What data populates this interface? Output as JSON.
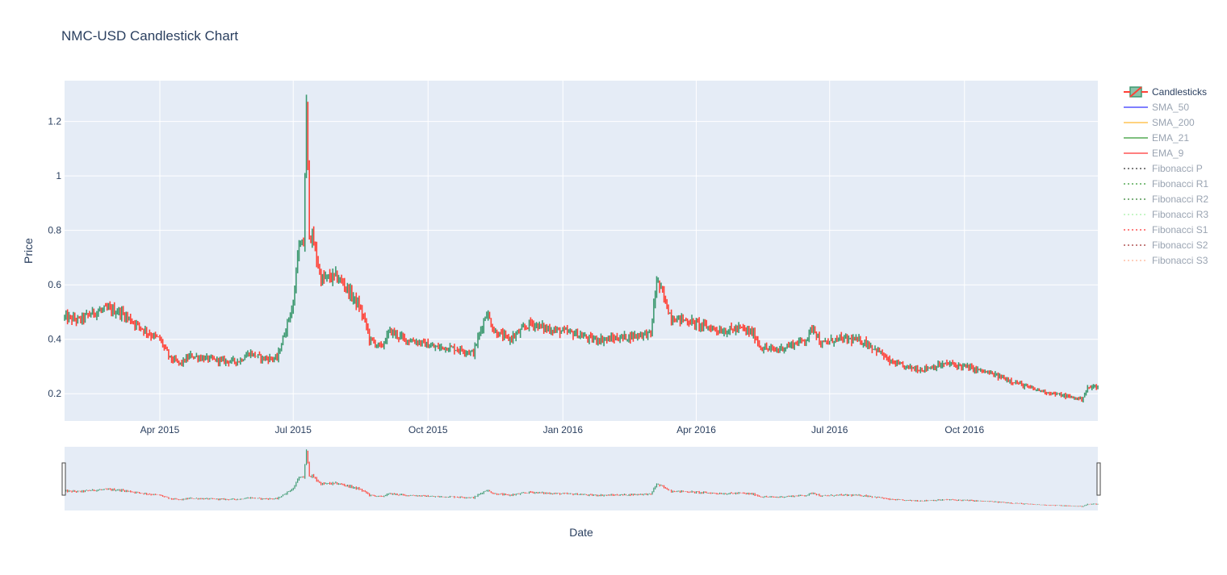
{
  "chart_data": {
    "type": "candlestick",
    "title": "NMC-USD Candlestick Chart",
    "xlabel": "Date",
    "ylabel": "Price",
    "x_range": [
      "2015-01-26",
      "2016-12-31"
    ],
    "ylim": [
      0.1,
      1.35
    ],
    "y_ticks": [
      0.2,
      0.4,
      0.6,
      0.8,
      1,
      1.2
    ],
    "y_tick_labels": [
      "0.2",
      "0.4",
      "0.6",
      "0.8",
      "1",
      "1.2"
    ],
    "x_ticks": [
      "2015-04-01",
      "2015-07-01",
      "2015-10-01",
      "2016-01-01",
      "2016-04-01",
      "2016-07-01",
      "2016-10-01"
    ],
    "x_tick_labels": [
      "Apr 2015",
      "Jul 2015",
      "Oct 2015",
      "Jan 2016",
      "Apr 2016",
      "Jul 2016",
      "Oct 2016"
    ],
    "increasing_color": "#3d9970",
    "decreasing_color": "#ff4136",
    "grid": true,
    "legend_position": "right",
    "rangeslider": true,
    "series": [
      {
        "name": "Candlesticks",
        "kind": "candlestick",
        "visible": true
      },
      {
        "name": "SMA_50",
        "kind": "line",
        "color": "#0000ff",
        "dash": "solid",
        "visible": false
      },
      {
        "name": "SMA_200",
        "kind": "line",
        "color": "#ffa500",
        "dash": "solid",
        "visible": false
      },
      {
        "name": "EMA_21",
        "kind": "line",
        "color": "#008000",
        "dash": "solid",
        "visible": false
      },
      {
        "name": "EMA_9",
        "kind": "line",
        "color": "#ff0000",
        "dash": "solid",
        "visible": false
      },
      {
        "name": "Fibonacci P",
        "kind": "line",
        "color": "#000000",
        "dash": "dot",
        "visible": false
      },
      {
        "name": "Fibonacci R1",
        "kind": "line",
        "color": "#008000",
        "dash": "dot",
        "visible": false
      },
      {
        "name": "Fibonacci R2",
        "kind": "line",
        "color": "#006400",
        "dash": "dot",
        "visible": false
      },
      {
        "name": "Fibonacci R3",
        "kind": "line",
        "color": "#90ee90",
        "dash": "dot",
        "visible": false
      },
      {
        "name": "Fibonacci S1",
        "kind": "line",
        "color": "#ff0000",
        "dash": "dot",
        "visible": false
      },
      {
        "name": "Fibonacci S2",
        "kind": "line",
        "color": "#8b0000",
        "dash": "dot",
        "visible": false
      },
      {
        "name": "Fibonacci S3",
        "kind": "line",
        "color": "#ffa07a",
        "dash": "dot",
        "visible": false
      }
    ],
    "price_path": [
      [
        "2015-01-26",
        0.48
      ],
      [
        "2015-02-05",
        0.47
      ],
      [
        "2015-02-15",
        0.5
      ],
      [
        "2015-02-25",
        0.51
      ],
      [
        "2015-03-05",
        0.5
      ],
      [
        "2015-03-15",
        0.46
      ],
      [
        "2015-03-25",
        0.42
      ],
      [
        "2015-04-01",
        0.4
      ],
      [
        "2015-04-08",
        0.33
      ],
      [
        "2015-04-15",
        0.31
      ],
      [
        "2015-04-22",
        0.34
      ],
      [
        "2015-05-01",
        0.33
      ],
      [
        "2015-05-15",
        0.32
      ],
      [
        "2015-05-25",
        0.32
      ],
      [
        "2015-06-01",
        0.35
      ],
      [
        "2015-06-10",
        0.33
      ],
      [
        "2015-06-20",
        0.33
      ],
      [
        "2015-06-25",
        0.42
      ],
      [
        "2015-06-29",
        0.5
      ],
      [
        "2015-07-01",
        0.52
      ],
      [
        "2015-07-04",
        0.72
      ],
      [
        "2015-07-08",
        0.75
      ],
      [
        "2015-07-10",
        1.25
      ],
      [
        "2015-07-12",
        0.8
      ],
      [
        "2015-07-15",
        0.75
      ],
      [
        "2015-07-20",
        0.62
      ],
      [
        "2015-07-30",
        0.63
      ],
      [
        "2015-08-05",
        0.6
      ],
      [
        "2015-08-15",
        0.52
      ],
      [
        "2015-08-20",
        0.45
      ],
      [
        "2015-08-22",
        0.4
      ],
      [
        "2015-08-30",
        0.37
      ],
      [
        "2015-09-05",
        0.43
      ],
      [
        "2015-09-15",
        0.4
      ],
      [
        "2015-09-25",
        0.39
      ],
      [
        "2015-10-05",
        0.37
      ],
      [
        "2015-10-15",
        0.37
      ],
      [
        "2015-10-25",
        0.36
      ],
      [
        "2015-11-01",
        0.35
      ],
      [
        "2015-11-05",
        0.42
      ],
      [
        "2015-11-10",
        0.5
      ],
      [
        "2015-11-15",
        0.43
      ],
      [
        "2015-11-25",
        0.4
      ],
      [
        "2015-12-01",
        0.42
      ],
      [
        "2015-12-10",
        0.46
      ],
      [
        "2015-12-20",
        0.44
      ],
      [
        "2015-12-30",
        0.43
      ],
      [
        "2016-01-10",
        0.42
      ],
      [
        "2016-01-20",
        0.4
      ],
      [
        "2016-02-01",
        0.4
      ],
      [
        "2016-02-15",
        0.41
      ],
      [
        "2016-02-25",
        0.42
      ],
      [
        "2016-03-01",
        0.42
      ],
      [
        "2016-03-05",
        0.62
      ],
      [
        "2016-03-10",
        0.55
      ],
      [
        "2016-03-15",
        0.48
      ],
      [
        "2016-03-25",
        0.47
      ],
      [
        "2016-04-05",
        0.45
      ],
      [
        "2016-04-20",
        0.43
      ],
      [
        "2016-05-01",
        0.44
      ],
      [
        "2016-05-10",
        0.42
      ],
      [
        "2016-05-15",
        0.37
      ],
      [
        "2016-05-25",
        0.36
      ],
      [
        "2016-06-05",
        0.38
      ],
      [
        "2016-06-15",
        0.4
      ],
      [
        "2016-06-20",
        0.45
      ],
      [
        "2016-06-25",
        0.38
      ],
      [
        "2016-07-05",
        0.4
      ],
      [
        "2016-07-15",
        0.4
      ],
      [
        "2016-07-25",
        0.39
      ],
      [
        "2016-08-05",
        0.35
      ],
      [
        "2016-08-10",
        0.32
      ],
      [
        "2016-08-20",
        0.3
      ],
      [
        "2016-09-01",
        0.29
      ],
      [
        "2016-09-10",
        0.3
      ],
      [
        "2016-09-20",
        0.31
      ],
      [
        "2016-10-01",
        0.3
      ],
      [
        "2016-10-15",
        0.28
      ],
      [
        "2016-11-01",
        0.25
      ],
      [
        "2016-11-15",
        0.22
      ],
      [
        "2016-12-01",
        0.2
      ],
      [
        "2016-12-10",
        0.19
      ],
      [
        "2016-12-20",
        0.18
      ],
      [
        "2016-12-24",
        0.22
      ],
      [
        "2016-12-31",
        0.23
      ]
    ]
  }
}
